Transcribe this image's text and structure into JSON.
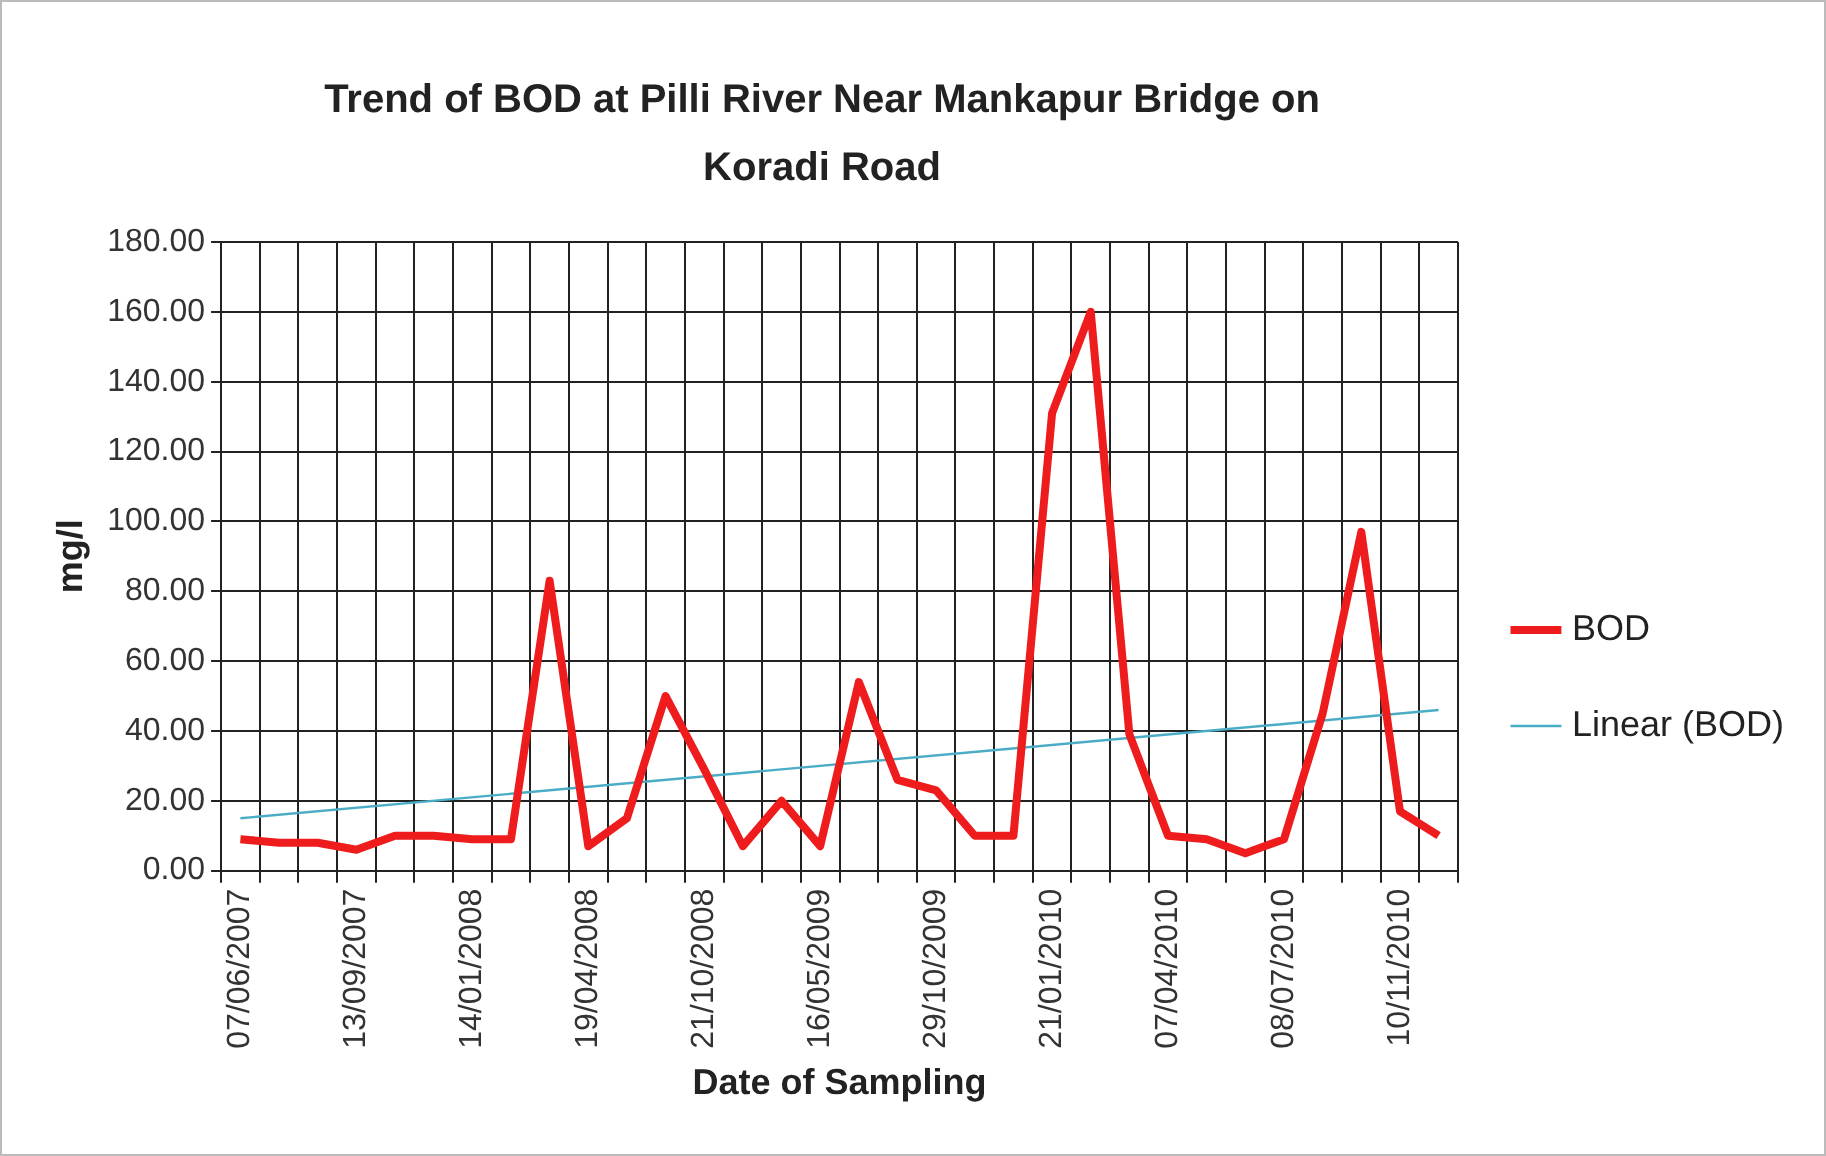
{
  "chart_data": {
    "type": "line",
    "title": "Trend of BOD at Pilli River Near Mankapur Bridge on Koradi Road",
    "xlabel": "Date of Sampling",
    "ylabel": "mg/l",
    "categories": [
      "07/06/2007",
      null,
      null,
      "13/09/2007",
      null,
      null,
      "14/01/2008",
      null,
      null,
      "19/04/2008",
      null,
      null,
      "21/10/2008",
      null,
      null,
      "16/05/2009",
      null,
      null,
      "29/10/2009",
      null,
      null,
      "21/01/2010",
      null,
      null,
      "07/04/2010",
      null,
      null,
      "08/07/2010",
      null,
      null,
      "10/11/2010",
      null
    ],
    "series": [
      {
        "name": "BOD",
        "color": "#ee1c1c",
        "values": [
          9,
          8,
          8,
          6,
          10,
          10,
          9,
          9,
          83,
          7,
          15,
          50,
          29,
          7,
          20,
          7,
          54,
          26,
          23,
          10,
          10,
          131,
          160,
          39,
          10,
          9,
          5,
          9,
          45,
          97,
          17,
          10
        ]
      },
      {
        "name": "Linear (BOD)",
        "color": "#4bacc6",
        "values": [
          15,
          null,
          null,
          null,
          null,
          null,
          null,
          null,
          null,
          null,
          null,
          null,
          null,
          null,
          null,
          null,
          null,
          null,
          null,
          null,
          null,
          null,
          null,
          null,
          null,
          null,
          null,
          null,
          null,
          null,
          null,
          46
        ]
      }
    ],
    "ylim": [
      0,
      180
    ],
    "yticks": [
      {
        "value": 0,
        "label": "0.00"
      },
      {
        "value": 20,
        "label": "20.00"
      },
      {
        "value": 40,
        "label": "40.00"
      },
      {
        "value": 60,
        "label": "60.00"
      },
      {
        "value": 80,
        "label": "80.00"
      },
      {
        "value": 100,
        "label": "100.00"
      },
      {
        "value": 120,
        "label": "120.00"
      },
      {
        "value": 140,
        "label": "140.00"
      },
      {
        "value": 160,
        "label": "160.00"
      },
      {
        "value": 180,
        "label": "180.00"
      }
    ],
    "grid": true,
    "legend": "right",
    "marker": "none"
  }
}
